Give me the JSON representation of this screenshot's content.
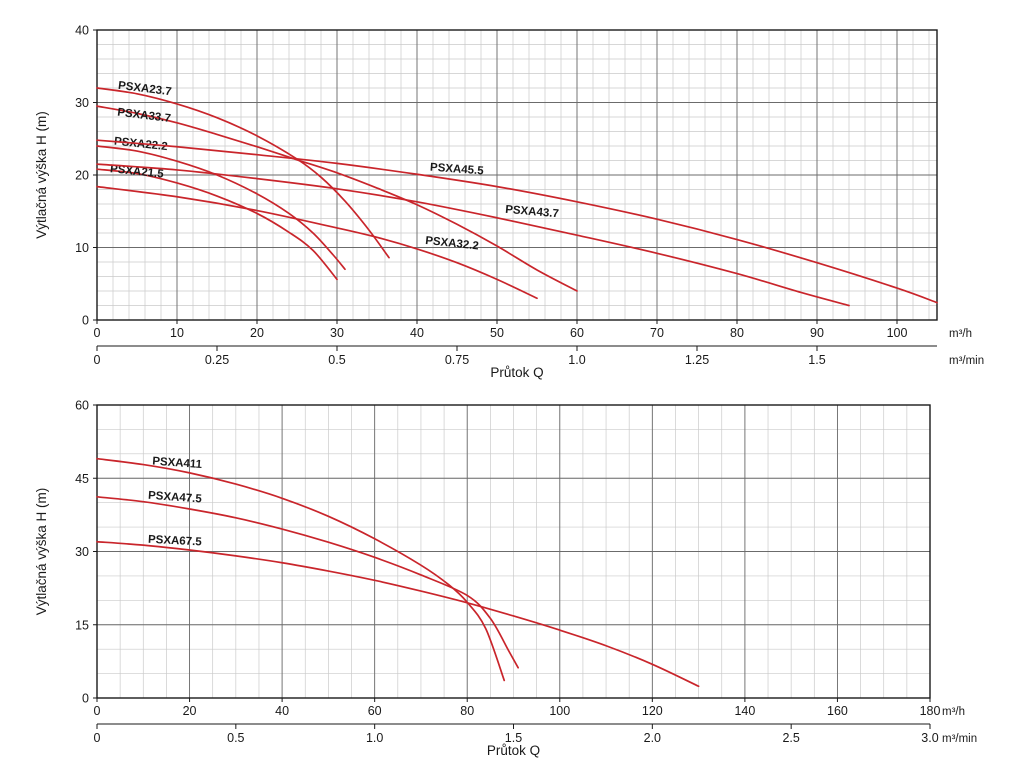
{
  "page": {
    "background": "#ffffff",
    "description": "PSXA pump performance curves, head vs flow"
  },
  "chart_data": [
    {
      "name": "top-chart",
      "type": "line",
      "title": "",
      "ylabel": "Výtlačná výška H (m)",
      "xlabel": "Průtok Q",
      "x_unit": "m³/h",
      "x2_unit": "m³/min",
      "xlim": [
        0,
        105
      ],
      "ylim": [
        0,
        40
      ],
      "x_major_ticks": [
        0,
        10,
        20,
        30,
        40,
        50,
        60,
        70,
        80,
        90,
        100
      ],
      "x_minor_step": 2,
      "y_major_ticks": [
        0,
        10,
        20,
        30,
        40
      ],
      "y_minor_step": 2,
      "x2_ticks": [
        {
          "label": "0",
          "value": 0
        },
        {
          "label": "0.25",
          "value": 0.25
        },
        {
          "label": "0.5",
          "value": 0.5
        },
        {
          "label": "0.75",
          "value": 0.75
        },
        {
          "label": "1.0",
          "value": 1.0
        },
        {
          "label": "1.25",
          "value": 1.25
        },
        {
          "label": "1.5",
          "value": 1.5
        }
      ],
      "curve_color": "#c9252b",
      "grid": true,
      "legend": "inline-labels",
      "series": [
        {
          "name": "PSXA23.7",
          "label_pos": [
            2.6,
            31.9
          ],
          "label_rot": 7,
          "points": [
            [
              0,
              32
            ],
            [
              5,
              31.2
            ],
            [
              10,
              29.8
            ],
            [
              15,
              27.9
            ],
            [
              20,
              25.4
            ],
            [
              25,
              22.2
            ],
            [
              28,
              19.7
            ],
            [
              31,
              16.4
            ],
            [
              34,
              12.4
            ],
            [
              36.5,
              8.6
            ]
          ]
        },
        {
          "name": "PSXA33.7",
          "label_pos": [
            2.5,
            28.2
          ],
          "label_rot": 7,
          "points": [
            [
              0,
              29.5
            ],
            [
              5,
              28.5
            ],
            [
              10,
              27.2
            ],
            [
              15,
              25.6
            ],
            [
              20,
              23.9
            ],
            [
              25,
              22.1
            ],
            [
              30,
              20.3
            ],
            [
              35,
              18.2
            ],
            [
              40,
              15.9
            ],
            [
              45,
              13.2
            ],
            [
              50,
              10.2
            ],
            [
              55,
              6.9
            ],
            [
              60,
              4
            ]
          ]
        },
        {
          "name": "PSXA22.2",
          "label_pos": [
            2.1,
            24.2
          ],
          "label_rot": 6,
          "points": [
            [
              0,
              24
            ],
            [
              5,
              23.3
            ],
            [
              10,
              21.9
            ],
            [
              15,
              20
            ],
            [
              20,
              17.4
            ],
            [
              24,
              14.7
            ],
            [
              27,
              12
            ],
            [
              29.5,
              9
            ],
            [
              31,
              7
            ]
          ]
        },
        {
          "name": "PSXA21.5",
          "label_pos": [
            1.6,
            20.4
          ],
          "label_rot": 6,
          "points": [
            [
              0,
              20.8
            ],
            [
              5,
              20.2
            ],
            [
              10,
              18.9
            ],
            [
              15,
              17.1
            ],
            [
              20,
              14.7
            ],
            [
              24,
              12.1
            ],
            [
              27,
              9.6
            ],
            [
              30,
              5.6
            ]
          ]
        },
        {
          "name": "PSXA45.5",
          "label_pos": [
            41.6,
            20.6
          ],
          "label_rot": 4,
          "points": [
            [
              0,
              24.8
            ],
            [
              10,
              23.9
            ],
            [
              20,
              22.8
            ],
            [
              30,
              21.6
            ],
            [
              40,
              20.1
            ],
            [
              50,
              18.4
            ],
            [
              60,
              16.3
            ],
            [
              70,
              13.9
            ],
            [
              80,
              11.1
            ],
            [
              90,
              7.9
            ],
            [
              100,
              4.4
            ],
            [
              105,
              2.4
            ]
          ]
        },
        {
          "name": "PSXA43.7",
          "label_pos": [
            51,
            14.8
          ],
          "label_rot": 5,
          "points": [
            [
              0,
              21.5
            ],
            [
              10,
              20.7
            ],
            [
              20,
              19.5
            ],
            [
              30,
              18.1
            ],
            [
              40,
              16.3
            ],
            [
              50,
              14.1
            ],
            [
              60,
              11.7
            ],
            [
              70,
              9.2
            ],
            [
              80,
              6.4
            ],
            [
              88,
              3.8
            ],
            [
              94,
              2
            ]
          ]
        },
        {
          "name": "PSXA32.2",
          "label_pos": [
            41,
            10.5
          ],
          "label_rot": 6,
          "points": [
            [
              0,
              18.4
            ],
            [
              10,
              17
            ],
            [
              20,
              15.1
            ],
            [
              30,
              12.7
            ],
            [
              35,
              11.4
            ],
            [
              40,
              9.8
            ],
            [
              45,
              7.9
            ],
            [
              50,
              5.6
            ],
            [
              55,
              3
            ]
          ]
        }
      ]
    },
    {
      "name": "bottom-chart",
      "type": "line",
      "title": "",
      "ylabel": "Výtlačná výška H (m)",
      "xlabel": "Průtok Q",
      "x_unit": "m³/h",
      "x2_unit": "m³/min",
      "xlim": [
        0,
        180
      ],
      "ylim": [
        0,
        60
      ],
      "x_major_ticks": [
        0,
        20,
        40,
        60,
        80,
        100,
        120,
        140,
        160,
        180
      ],
      "x_minor_step": 5,
      "y_major_ticks": [
        0,
        15,
        30,
        45,
        60
      ],
      "y_minor_step": 5,
      "x2_ticks": [
        {
          "label": "0",
          "value": 0
        },
        {
          "label": "0.5",
          "value": 0.5
        },
        {
          "label": "1.0",
          "value": 1.0
        },
        {
          "label": "1.5",
          "value": 1.5
        },
        {
          "label": "2.0",
          "value": 2.0
        },
        {
          "label": "2.5",
          "value": 2.5
        },
        {
          "label": "3.0",
          "value": 3.0
        }
      ],
      "curve_color": "#c9252b",
      "grid": true,
      "legend": "inline-labels",
      "series": [
        {
          "name": "PSXA411",
          "label_pos": [
            11.9,
            47.8
          ],
          "label_rot": 4,
          "points": [
            [
              0,
              49
            ],
            [
              10,
              47.8
            ],
            [
              20,
              46.1
            ],
            [
              30,
              43.8
            ],
            [
              40,
              40.9
            ],
            [
              50,
              37.2
            ],
            [
              60,
              32.6
            ],
            [
              70,
              27.2
            ],
            [
              76,
              23.2
            ],
            [
              80,
              19.6
            ],
            [
              84,
              14.2
            ],
            [
              88,
              3.6
            ]
          ]
        },
        {
          "name": "PSXA47.5",
          "label_pos": [
            11,
            40.8
          ],
          "label_rot": 4,
          "points": [
            [
              0,
              41.2
            ],
            [
              10,
              40.2
            ],
            [
              20,
              38.7
            ],
            [
              30,
              36.9
            ],
            [
              40,
              34.6
            ],
            [
              50,
              31.9
            ],
            [
              60,
              28.8
            ],
            [
              70,
              25.2
            ],
            [
              80,
              21
            ],
            [
              85,
              16.3
            ],
            [
              89,
              9.6
            ],
            [
              91,
              6.2
            ]
          ]
        },
        {
          "name": "PSXA67.5",
          "label_pos": [
            11,
            31.8
          ],
          "label_rot": 3,
          "points": [
            [
              0,
              32
            ],
            [
              10,
              31.3
            ],
            [
              20,
              30.3
            ],
            [
              30,
              29.1
            ],
            [
              40,
              27.7
            ],
            [
              50,
              26
            ],
            [
              60,
              24.1
            ],
            [
              70,
              21.9
            ],
            [
              80,
              19.5
            ],
            [
              90,
              16.8
            ],
            [
              100,
              13.9
            ],
            [
              110,
              10.7
            ],
            [
              120,
              6.9
            ],
            [
              130,
              2.4
            ]
          ]
        }
      ]
    }
  ]
}
